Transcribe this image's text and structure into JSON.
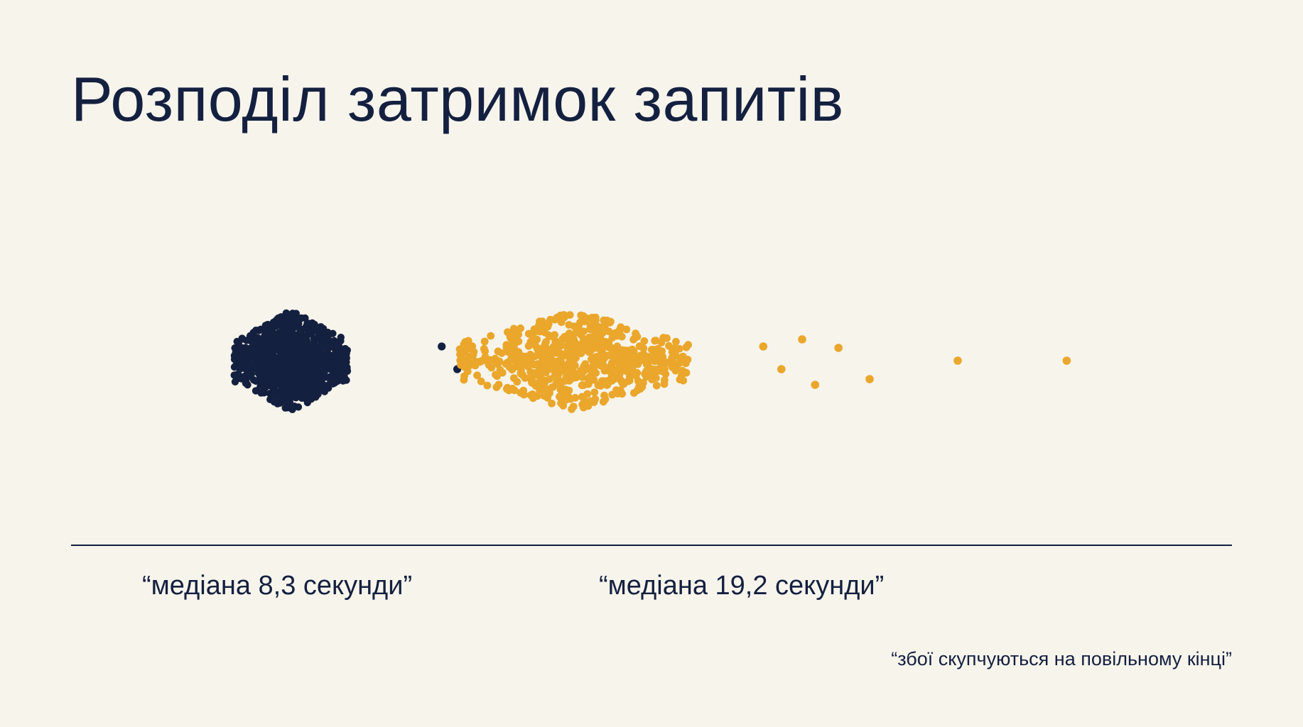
{
  "title": "Розподіл затримок запитів",
  "colors": {
    "background": "#f7f4ec",
    "text": "#14203f",
    "baseline": "#14203f"
  },
  "chart_data": {
    "type": "scatter",
    "title": "Розподіл затримок запитів",
    "xlabel": "",
    "ylabel": "",
    "grid": false,
    "legend": "none",
    "units": "seconds",
    "series": [
      {
        "label": "“медіана 8,3 секунди”",
        "median": 8.3,
        "color": "#14203f",
        "point_count": 900,
        "core_spread": 2.2,
        "outliers": [
          14.1,
          14.7
        ]
      },
      {
        "label": "“медіана 19,2 секунди”",
        "median": 19.2,
        "color": "#eaa72c",
        "point_count": 680,
        "core_spread": 4.2,
        "tail_points": [
          26.5,
          27.2,
          28.0,
          28.5,
          29.4,
          30.6,
          34.0,
          38.2
        ]
      }
    ],
    "annotation": "“збої скупчуються на повільному кінці”"
  }
}
